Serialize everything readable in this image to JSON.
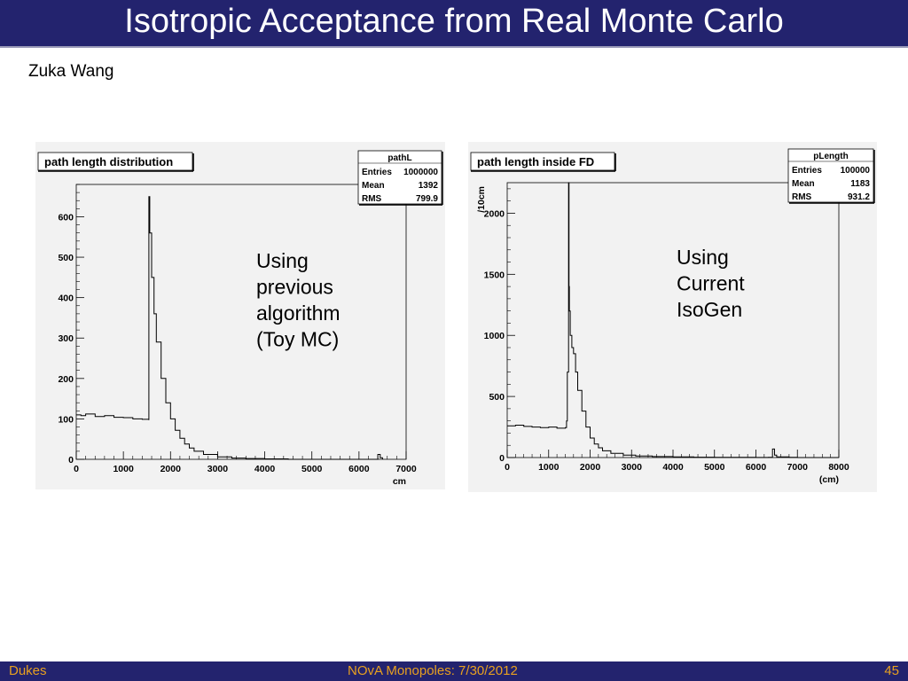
{
  "header": {
    "title": "Isotropic Acceptance from Real Monte Carlo"
  },
  "author": "Zuka Wang",
  "footer": {
    "left": "Dukes",
    "center": "NOvA Monopoles:  7/30/2012",
    "right": "45"
  },
  "colors": {
    "bar": "#23236e",
    "footer_text": "#e8a020"
  },
  "chart_data": [
    {
      "type": "line",
      "title": "path length distribution",
      "xlabel": "cm",
      "ylabel": "",
      "xlim": [
        0,
        7000
      ],
      "ylim": [
        0,
        680
      ],
      "xticks": [
        0,
        1000,
        2000,
        3000,
        4000,
        5000,
        6000,
        7000
      ],
      "yticks": [
        0,
        100,
        200,
        300,
        400,
        500,
        600
      ],
      "stats": {
        "name": "pathL",
        "rows": [
          [
            "Entries",
            "1000000"
          ],
          [
            "Mean",
            "1392"
          ],
          [
            "RMS",
            "799.9"
          ]
        ]
      },
      "annotation": [
        "Using",
        "previous",
        "algorithm",
        "(Toy MC)"
      ],
      "series": [
        {
          "x": [
            0,
            100,
            200,
            400,
            600,
            800,
            1000,
            1200,
            1400,
            1540,
            1541,
            1560,
            1600,
            1650,
            1700,
            1800,
            1900,
            2000,
            2100,
            2200,
            2300,
            2400,
            2500,
            2700,
            3000,
            3300,
            3600,
            4000,
            4500,
            5000,
            5500,
            6000,
            6350,
            6400,
            6450,
            6500
          ],
          "y": [
            110,
            108,
            112,
            106,
            108,
            104,
            103,
            100,
            99,
            98,
            650,
            560,
            450,
            360,
            290,
            200,
            140,
            100,
            72,
            52,
            38,
            28,
            20,
            12,
            6,
            3,
            2,
            1,
            0,
            0,
            0,
            0,
            0,
            12,
            4,
            0
          ]
        }
      ]
    },
    {
      "type": "line",
      "title": "path length inside FD",
      "xlabel": "(cm)",
      "ylabel": "/10cm",
      "xlim": [
        0,
        8000
      ],
      "ylim": [
        0,
        2250
      ],
      "xticks": [
        0,
        1000,
        2000,
        3000,
        4000,
        5000,
        6000,
        7000,
        8000
      ],
      "yticks": [
        0,
        500,
        1000,
        1500,
        2000
      ],
      "stats": {
        "name": "pLength",
        "rows": [
          [
            "Entries",
            "100000"
          ],
          [
            "Mean",
            "1183"
          ],
          [
            "RMS",
            "931.2"
          ]
        ]
      },
      "annotation": [
        "Using",
        "Current",
        "IsoGen"
      ],
      "series": [
        {
          "x": [
            0,
            200,
            400,
            600,
            800,
            1000,
            1200,
            1400,
            1430,
            1450,
            1480,
            1490,
            1500,
            1520,
            1560,
            1600,
            1650,
            1700,
            1800,
            1900,
            2000,
            2100,
            2200,
            2300,
            2500,
            2800,
            3100,
            3500,
            4000,
            4500,
            5000,
            5500,
            6000,
            6300,
            6400,
            6450,
            6500,
            6800,
            7000,
            8000
          ],
          "y": [
            260,
            265,
            255,
            250,
            245,
            250,
            240,
            245,
            300,
            700,
            2250,
            1400,
            1200,
            1000,
            900,
            850,
            700,
            550,
            380,
            250,
            160,
            110,
            80,
            55,
            35,
            20,
            12,
            8,
            5,
            3,
            2,
            2,
            1,
            2,
            70,
            20,
            5,
            2,
            0,
            0
          ]
        }
      ]
    }
  ]
}
